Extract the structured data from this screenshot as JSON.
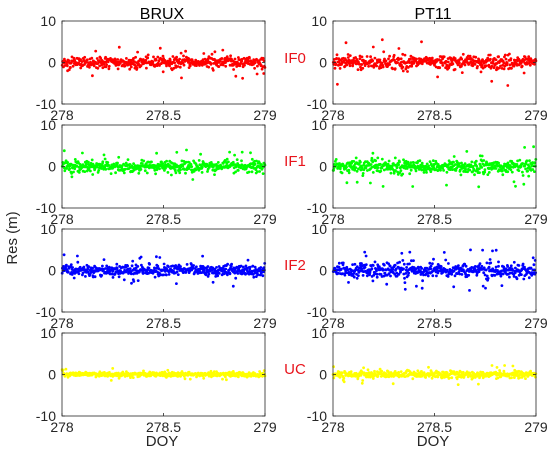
{
  "figure": {
    "shared_ylabel": "Res (m)",
    "columns": [
      "BRUX",
      "PT11"
    ],
    "rows": [
      "IF0",
      "IF1",
      "IF2",
      "UC"
    ],
    "row_label_color": "#e8141c"
  },
  "chart_data": {
    "type": "scatter",
    "grid": false,
    "xlim": [
      278,
      279
    ],
    "ylim": [
      -10,
      10
    ],
    "xticks": [
      "278",
      "278.5",
      "279"
    ],
    "yticks": [
      "10",
      "0",
      "-10"
    ],
    "xlabel": "DOY",
    "ylabel": "Res (m)",
    "series": [
      {
        "name": "IF0",
        "color": "#ff0000",
        "spread_BRUX": 1.2,
        "spread_PT11": 1.5,
        "max_abs_BRUX": 4,
        "max_abs_PT11": 6
      },
      {
        "name": "IF1",
        "color": "#00ff00",
        "spread_BRUX": 1.2,
        "spread_PT11": 1.5,
        "max_abs_BRUX": 4,
        "max_abs_PT11": 5
      },
      {
        "name": "IF2",
        "color": "#0000ff",
        "spread_BRUX": 1.3,
        "spread_PT11": 1.6,
        "max_abs_BRUX": 4,
        "max_abs_PT11": 5
      },
      {
        "name": "UC",
        "color": "#ffff00",
        "spread_BRUX": 0.5,
        "spread_PT11": 0.7,
        "max_abs_BRUX": 1.5,
        "max_abs_PT11": 2.5
      }
    ]
  }
}
